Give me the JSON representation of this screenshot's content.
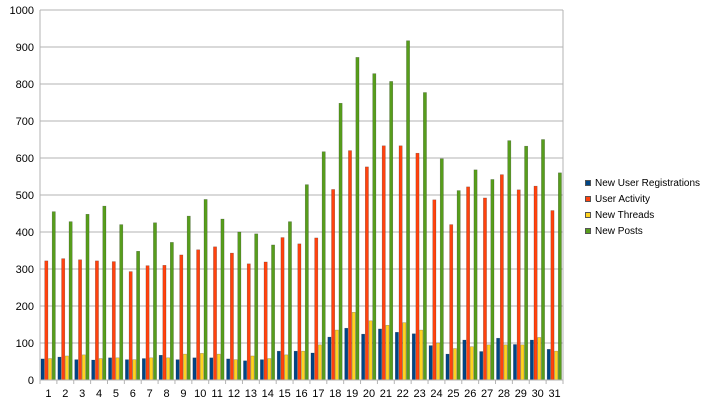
{
  "chart_data": {
    "type": "bar",
    "title": "",
    "xlabel": "",
    "ylabel": "",
    "ylim": [
      0,
      1000
    ],
    "yticks": [
      0,
      100,
      200,
      300,
      400,
      500,
      600,
      700,
      800,
      900,
      1000
    ],
    "grid": "horizontal",
    "legend_position": "right",
    "categories": [
      "1",
      "2",
      "3",
      "4",
      "5",
      "6",
      "7",
      "8",
      "9",
      "10",
      "11",
      "12",
      "13",
      "14",
      "15",
      "16",
      "17",
      "18",
      "19",
      "20",
      "21",
      "22",
      "23",
      "24",
      "25",
      "26",
      "27",
      "28",
      "29",
      "30",
      "31"
    ],
    "series": [
      {
        "name": "New User Registrations",
        "color": "#004586",
        "values": [
          57,
          62,
          55,
          54,
          60,
          55,
          58,
          67,
          55,
          60,
          60,
          57,
          52,
          55,
          78,
          78,
          73,
          116,
          140,
          124,
          138,
          129,
          125,
          93,
          70,
          108,
          77,
          113,
          96,
          108,
          83
        ]
      },
      {
        "name": "User Activity",
        "color": "#ff420e",
        "values": [
          322,
          328,
          325,
          322,
          320,
          293,
          309,
          310,
          338,
          352,
          360,
          343,
          314,
          319,
          385,
          368,
          384,
          515,
          620,
          576,
          633,
          633,
          613,
          487,
          420,
          522,
          492,
          555,
          514,
          524,
          458
        ]
      },
      {
        "name": "New Threads",
        "color": "#ffd320",
        "values": [
          58,
          65,
          68,
          58,
          60,
          55,
          60,
          60,
          70,
          72,
          70,
          55,
          65,
          58,
          68,
          78,
          95,
          135,
          183,
          160,
          148,
          155,
          135,
          100,
          85,
          90,
          95,
          95,
          95,
          115,
          78
        ]
      },
      {
        "name": "New Posts",
        "color": "#579d1c",
        "values": [
          455,
          428,
          448,
          470,
          420,
          348,
          425,
          372,
          443,
          488,
          435,
          400,
          395,
          365,
          428,
          528,
          617,
          748,
          872,
          828,
          807,
          917,
          777,
          598,
          512,
          568,
          542,
          647,
          632,
          650,
          560
        ]
      }
    ]
  }
}
